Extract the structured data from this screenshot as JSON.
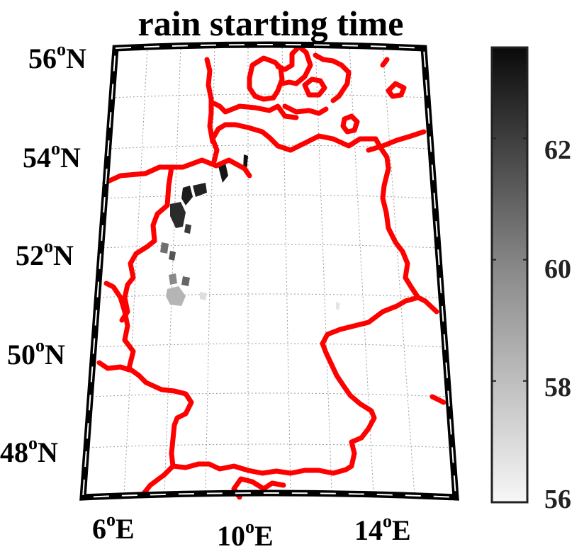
{
  "title": "rain starting time",
  "lat_labels": [
    {
      "deg": "56",
      "sup": "o",
      "hem": "N"
    },
    {
      "deg": "54",
      "sup": "o",
      "hem": "N"
    },
    {
      "deg": "52",
      "sup": "o",
      "hem": "N"
    },
    {
      "deg": "50",
      "sup": "o",
      "hem": "N"
    },
    {
      "deg": "48",
      "sup": "o",
      "hem": "N"
    }
  ],
  "lon_labels": [
    {
      "deg": "6",
      "sup": "o",
      "hem": "E"
    },
    {
      "deg": "10",
      "sup": "o",
      "hem": "E"
    },
    {
      "deg": "14",
      "sup": "o",
      "hem": "E"
    }
  ],
  "colorbar": {
    "min": 56,
    "max": 63.5,
    "tick_labels": [
      "62",
      "60",
      "58",
      "56"
    ],
    "colors": {
      "low": "#f7f7f7",
      "high": "#0a0a0a"
    }
  },
  "colors": {
    "border": "#ff0000",
    "frame": "#000000",
    "grid": "#999999"
  }
}
